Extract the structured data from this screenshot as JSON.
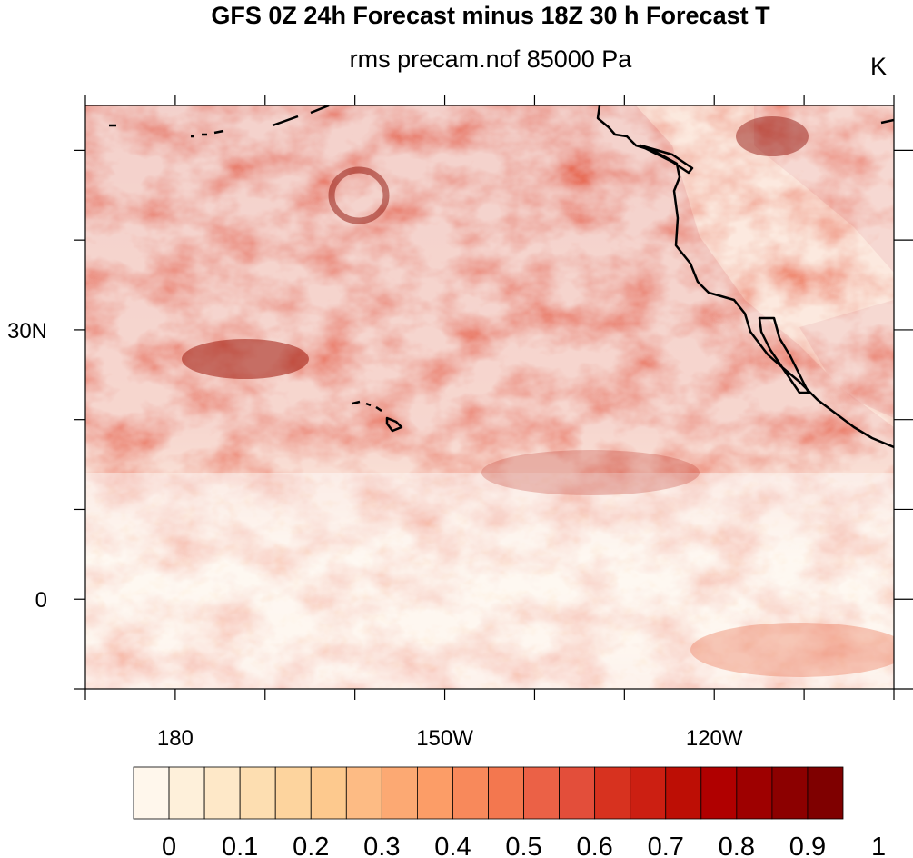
{
  "title": "GFS 0Z 24h Forecast minus 18Z 30 h Forecast T",
  "subtitle": "rms precam.nof 85000 Pa",
  "units": "K",
  "map": {
    "type": "heatmap",
    "projection": "cylindrical-equidistant",
    "lon_range": [
      170,
      -100
    ],
    "lat_range": [
      -10,
      55
    ],
    "x_ticks": [
      {
        "lon": 180,
        "label": "180"
      },
      {
        "lon": -150,
        "label": "150W"
      },
      {
        "lon": -120,
        "label": "120W"
      }
    ],
    "y_ticks": [
      {
        "lat": 30,
        "label": "30N"
      },
      {
        "lat": 0,
        "label": "0"
      }
    ],
    "colorbar": {
      "min": 0,
      "max": 1.05,
      "step": 0.05,
      "labels": [
        "0",
        "0.1",
        "0.2",
        "0.3",
        "0.4",
        "0.5",
        "0.6",
        "0.7",
        "0.8",
        "0.9",
        "1"
      ],
      "colors": [
        "#fff7ec",
        "#fef0da",
        "#fee8c8",
        "#fddeb1",
        "#fdd49e",
        "#fdc98e",
        "#fdbb84",
        "#fca973",
        "#fc9d67",
        "#f8895b",
        "#f3774f",
        "#eb6146",
        "#e34e3a",
        "#d7321f",
        "#cc1f12",
        "#bd0e05",
        "#b00000",
        "#9e0000",
        "#8c0000",
        "#7f0000"
      ]
    }
  }
}
